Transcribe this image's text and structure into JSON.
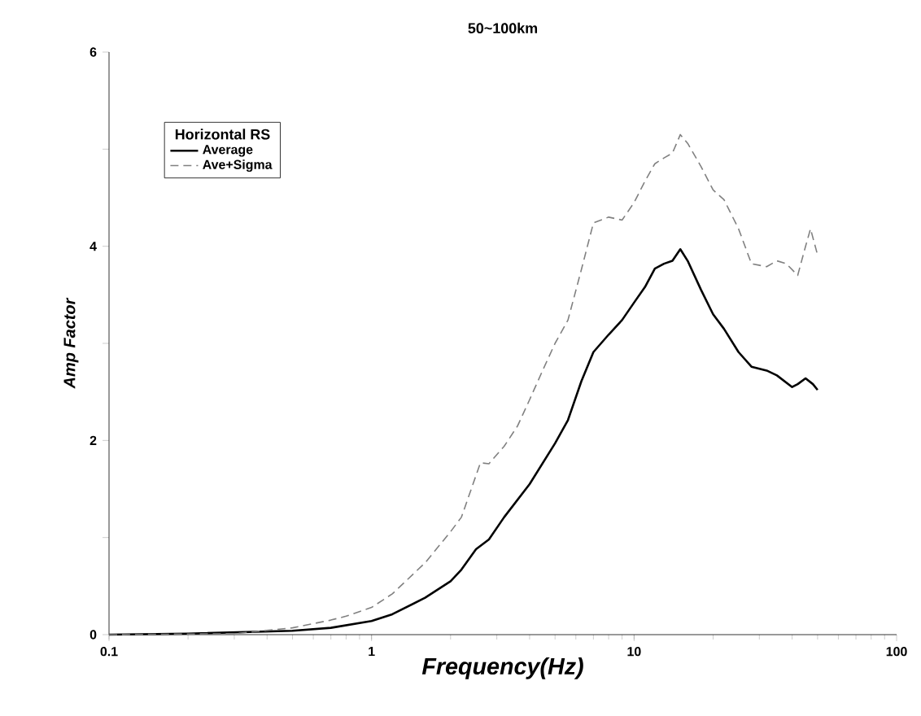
{
  "chart_data": {
    "type": "line",
    "title": "50~100km",
    "xlabel": "Frequency(Hz)",
    "ylabel": "Amp Factor",
    "legend_title": "Horizontal RS",
    "legend": "top left",
    "log": "x",
    "grid": false,
    "marker": "none",
    "xlim": [
      0.1,
      100
    ],
    "xticks": [
      0.1,
      1,
      10,
      100
    ],
    "ylim": [
      0,
      6
    ],
    "yticks": [
      0,
      {
        "value": 1,
        "label": null
      },
      2,
      {
        "value": 3,
        "label": null
      },
      4,
      {
        "value": 5,
        "label": null
      },
      6
    ],
    "series": [
      {
        "name": "Average",
        "color": "#000000",
        "line_style": "solid",
        "x": [
          0.1,
          0.2,
          0.5,
          0.7,
          1,
          1.2,
          1.6,
          2,
          2.2,
          2.5,
          2.8,
          3.2,
          4,
          5,
          5.6,
          6.3,
          7,
          8,
          9,
          10,
          11,
          12,
          13,
          14,
          15,
          16,
          18,
          20,
          22,
          25,
          28,
          32,
          35,
          40,
          42,
          45,
          48,
          50
        ],
        "values": [
          0,
          0.01,
          0.04,
          0.07,
          0.14,
          0.21,
          0.38,
          0.55,
          0.67,
          0.88,
          0.98,
          1.21,
          1.55,
          1.97,
          2.21,
          2.61,
          2.91,
          3.09,
          3.24,
          3.42,
          3.58,
          3.77,
          3.82,
          3.85,
          3.97,
          3.85,
          3.55,
          3.3,
          3.15,
          2.91,
          2.76,
          2.72,
          2.67,
          2.55,
          2.58,
          2.64,
          2.58,
          2.52
        ]
      },
      {
        "name": "Ave+Sigma",
        "color": "#808080",
        "line_style": "dashed",
        "x": [
          0.1,
          0.3,
          0.5,
          0.7,
          0.8,
          1,
          1.2,
          1.6,
          2,
          2.2,
          2.5,
          2.6,
          2.8,
          3.2,
          3.6,
          4,
          4.5,
          5,
          5.6,
          6.3,
          7,
          8,
          9,
          10,
          11,
          12,
          13,
          14,
          15,
          16,
          18,
          20,
          22,
          25,
          28,
          32,
          35,
          38,
          42,
          45,
          47,
          50
        ],
        "values": [
          0,
          0.01,
          0.07,
          0.15,
          0.19,
          0.28,
          0.42,
          0.74,
          1.06,
          1.21,
          1.64,
          1.77,
          1.76,
          1.94,
          2.15,
          2.42,
          2.73,
          3.0,
          3.24,
          3.76,
          4.24,
          4.3,
          4.27,
          4.45,
          4.67,
          4.85,
          4.91,
          4.96,
          5.15,
          5.06,
          4.82,
          4.58,
          4.48,
          4.18,
          3.82,
          3.79,
          3.85,
          3.82,
          3.7,
          4.0,
          4.18,
          3.91
        ]
      }
    ]
  }
}
